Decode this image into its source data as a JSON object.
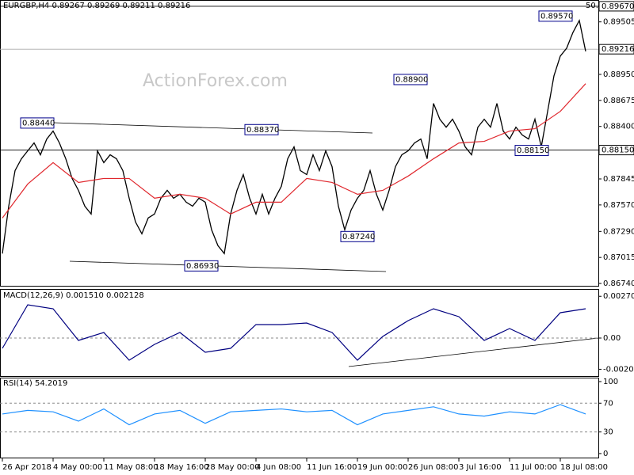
{
  "chart_data": [
    {
      "type": "line",
      "title": "EURGBP,H4 0.89267 0.89269 0.89211 0.89216",
      "watermark": "ActionForex.com",
      "fib_label": "50.0",
      "categories": [
        "26 Apr 2018",
        null,
        null,
        null,
        null,
        null,
        null,
        null,
        "4 May 00:00",
        null,
        null,
        null,
        null,
        null,
        null,
        null,
        "11 May 08:00",
        null,
        null,
        null,
        null,
        null,
        null,
        null,
        "18 May 16:00",
        null,
        null,
        null,
        null,
        null,
        null,
        null,
        "28 May 00:00",
        null,
        null,
        null,
        null,
        null,
        null,
        null,
        "4 Jun 08:00",
        null,
        null,
        null,
        null,
        null,
        null,
        null,
        "11 Jun 16:00",
        null,
        null,
        null,
        null,
        null,
        null,
        null,
        "19 Jun 00:00",
        null,
        null,
        null,
        null,
        null,
        null,
        null,
        "26 Jun 08:00",
        null,
        null,
        null,
        null,
        null,
        null,
        null,
        "3 Jul 16:00",
        null,
        null,
        null,
        null,
        null,
        null,
        null,
        "11 Jul 00:00",
        null,
        null,
        null,
        null,
        null,
        null,
        null,
        "18 Jul 08:00",
        null,
        null,
        null,
        null
      ],
      "series": [
        {
          "color": "#000000",
          "values": [
            0.87056,
            0.87557,
            0.87933,
            0.88058,
            0.88142,
            0.88225,
            0.881,
            0.88267,
            0.88351,
            0.88225,
            0.88058,
            0.8785,
            0.87724,
            0.87557,
            0.87474,
            0.88142,
            0.88017,
            0.881,
            0.88058,
            0.87933,
            0.87641,
            0.8739,
            0.87265,
            0.87432,
            0.87474,
            0.87641,
            0.87724,
            0.87641,
            0.87683,
            0.87599,
            0.87557,
            0.87641,
            0.87599,
            0.87307,
            0.8714,
            0.87056,
            0.87474,
            0.87724,
            0.87891,
            0.87641,
            0.87474,
            0.87683,
            0.87474,
            0.87641,
            0.87766,
            0.88058,
            0.88184,
            0.87933,
            0.87891,
            0.881,
            0.87933,
            0.88142,
            0.87975,
            0.87557,
            0.87307,
            0.87516,
            0.87641,
            0.87724,
            0.87933,
            0.87683,
            0.87516,
            0.87724,
            0.87975,
            0.881,
            0.88142,
            0.88225,
            0.88267,
            0.88058,
            0.88643,
            0.88476,
            0.88392,
            0.88476,
            0.88351,
            0.88184,
            0.881,
            0.88392,
            0.88476,
            0.88392,
            0.88643,
            0.88351,
            0.88267,
            0.88392,
            0.88309,
            0.88267,
            0.88476,
            0.88184,
            0.88559,
            0.88935,
            0.89144,
            0.89227,
            0.89394,
            0.8952,
            0.89194
          ]
        },
        {
          "color": "#e0282e",
          "x": [
            0,
            4,
            8,
            12,
            16,
            20,
            24,
            28,
            32,
            36,
            40,
            44,
            48,
            52,
            56,
            60,
            64,
            68,
            72,
            76,
            80,
            84,
            88,
            92
          ],
          "values": [
            0.87432,
            0.87791,
            0.88017,
            0.87808,
            0.8785,
            0.8785,
            0.87641,
            0.87683,
            0.87641,
            0.87474,
            0.87599,
            0.87599,
            0.8785,
            0.87808,
            0.87683,
            0.87724,
            0.87875,
            0.88058,
            0.88225,
            0.88242,
            0.88351,
            0.88376,
            0.88559,
            0.88852
          ]
        }
      ],
      "ylim": [
        0.86707,
        0.89728
      ],
      "yticks": [
        {
          "value": 0.8967,
          "label": "0.89670"
        },
        0.89505,
        {
          "value": 0.8895,
          "label": "0.88950"
        },
        0.88675,
        {
          "value": 0.884,
          "label": "0.88400"
        },
        0.87845,
        {
          "value": 0.8757,
          "label": "0.87570"
        },
        {
          "value": 0.8729,
          "label": "0.87290"
        },
        0.87015,
        {
          "value": 0.8674,
          "label": "0.86740"
        }
      ],
      "levels": [
        {
          "value": 0.8967,
          "label": "0.89670"
        },
        {
          "value": 0.89216,
          "label": "0.89216"
        },
        {
          "value": 0.8815,
          "label": "0.88150"
        }
      ],
      "annotations": [
        {
          "value": 0.8844,
          "label": "0.88440"
        },
        {
          "value": 0.8837,
          "label": "0.88370"
        },
        {
          "value": 0.889,
          "label": "0.88900"
        },
        {
          "value": 0.8957,
          "label": "0.89570"
        },
        {
          "value": 0.8815,
          "label": "0.88150"
        },
        {
          "value": 0.8724,
          "label": "0.87240"
        },
        {
          "value": 0.8693,
          "label": "0.86930"
        }
      ]
    },
    {
      "type": "line",
      "title": "MACD(12,26,9) 0.001510 0.002128",
      "series": [
        {
          "color": "#000080",
          "x": [
            0,
            4,
            8,
            12,
            16,
            20,
            24,
            28,
            32,
            36,
            40,
            44,
            48,
            52,
            56,
            60,
            64,
            68,
            72,
            76,
            80,
            84,
            88,
            92
          ],
          "values": [
            -0.000667,
            0.002154,
            0.001897,
            -0.000154,
            0.000359,
            -0.001436,
            -0.00041,
            0.000359,
            -0.000923,
            -0.000667,
            0.000872,
            0.000872,
            0.000974,
            0.000359,
            -0.001436,
            0.000103,
            0.001128,
            0.001897,
            0.001385,
            -0.000154,
            0.000615,
            -0.000154,
            0.001641,
            0.001897
          ]
        }
      ],
      "ylim": [
        -0.002513,
        0.003128
      ],
      "yticks": [
        0.002705,
        {
          "value": 0,
          "label": "0.00"
        },
        -0.002023
      ]
    },
    {
      "type": "line",
      "title": "RSI(14) 54.2019",
      "series": [
        {
          "color": "#1e90ff",
          "x": [
            0,
            4,
            8,
            12,
            16,
            20,
            24,
            28,
            32,
            36,
            40,
            44,
            48,
            52,
            56,
            60,
            64,
            68,
            72,
            76,
            80,
            84,
            88,
            92
          ],
          "values": [
            55,
            60,
            58,
            45,
            62,
            40,
            55,
            60,
            42,
            58,
            60,
            62,
            58,
            60,
            40,
            55,
            60,
            65,
            55,
            52,
            58,
            55,
            68,
            55
          ]
        }
      ],
      "ylim": [
        -6.7,
        104.4
      ],
      "yticks": [
        100,
        70,
        30,
        0
      ]
    }
  ]
}
